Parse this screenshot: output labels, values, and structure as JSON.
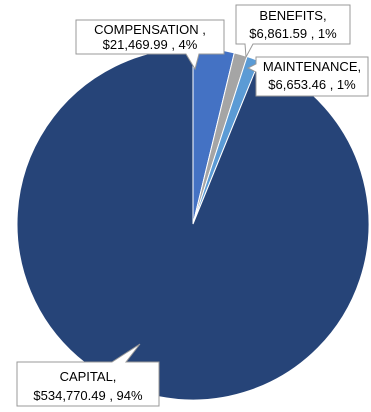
{
  "chart_data": {
    "type": "pie",
    "start_angle_deg": 0,
    "direction": "clockwise",
    "slices": [
      {
        "label": "COMPENSATION",
        "value_text": "$21,469.99",
        "percent_text": "4%",
        "value": 21469.99,
        "color": "#4472C4"
      },
      {
        "label": "BENEFITS",
        "value_text": "$6,861.59",
        "percent_text": "1%",
        "value": 6861.59,
        "color": "#A5A5A5"
      },
      {
        "label": "MAINTENANCE",
        "value_text": "$6,653.46",
        "percent_text": "1%",
        "value": 6653.46,
        "color": "#5B9BD5"
      },
      {
        "label": "CAPITAL",
        "value_text": "$534,770.49",
        "percent_text": "94%",
        "value": 534770.49,
        "color": "#264478"
      }
    ],
    "callouts": [
      {
        "line1": "COMPENSATION ,",
        "line2": "$21,469.99 , 4%"
      },
      {
        "line1": "BENEFITS,",
        "line2": "$6,861.59 , 1%"
      },
      {
        "line1": "MAINTENANCE,",
        "line2": "$6,653.46 , 1%"
      },
      {
        "line1": "CAPITAL,",
        "line2": "$534,770.49 , 94%"
      }
    ]
  }
}
